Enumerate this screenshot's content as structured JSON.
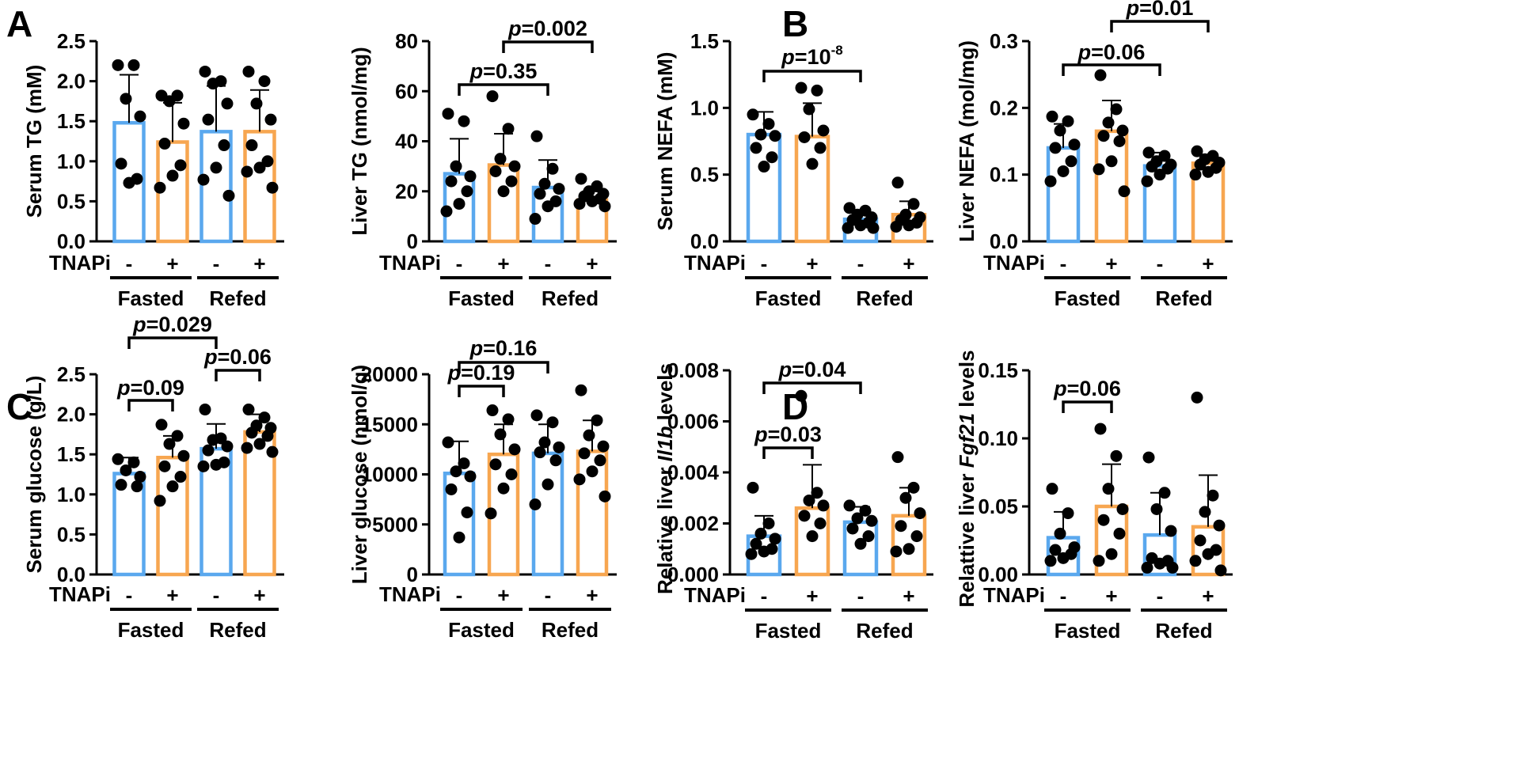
{
  "panel_letters": [
    "A",
    "B",
    "C",
    "D"
  ],
  "colors": {
    "control": "#5aa8ee",
    "treated": "#f7a650",
    "point": "#000000"
  },
  "treatment_label": "TNAPi",
  "treatment_signs": [
    "-",
    "+",
    "-",
    "+"
  ],
  "group_labels": [
    "Fasted",
    "Refed"
  ],
  "chart_data": [
    {
      "type": "bar",
      "ylabel": "Serum TG (mM)",
      "ylim": [
        0,
        2.5
      ],
      "yticks": [
        "0.0",
        "0.5",
        "1.0",
        "1.5",
        "2.0",
        "2.5"
      ],
      "categories": [
        "Fasted -",
        "Fasted +",
        "Refed -",
        "Refed +"
      ],
      "values": [
        1.48,
        1.24,
        1.37,
        1.37
      ],
      "errors": [
        0.6,
        0.49,
        0.57,
        0.52
      ],
      "points": [
        [
          2.2,
          2.2,
          1.78,
          1.56,
          0.97,
          0.78,
          0.73
        ],
        [
          1.82,
          1.82,
          1.75,
          1.47,
          1.22,
          0.95,
          0.82,
          0.67
        ],
        [
          2.12,
          2.0,
          1.97,
          1.72,
          1.52,
          1.2,
          0.92,
          0.77,
          0.57
        ],
        [
          2.12,
          2.0,
          1.72,
          1.52,
          1.2,
          1.0,
          0.92,
          0.87,
          0.67
        ]
      ],
      "comparisons": []
    },
    {
      "type": "bar",
      "ylabel": "Liver TG (nmol/mg)",
      "ylim": [
        0,
        80
      ],
      "yticks": [
        "0",
        "20",
        "40",
        "60",
        "80"
      ],
      "categories": [
        "Fasted -",
        "Fasted +",
        "Refed -",
        "Refed +"
      ],
      "values": [
        27,
        30.5,
        21.5,
        16.5
      ],
      "errors": [
        14,
        12.5,
        11,
        3.5
      ],
      "points": [
        [
          51,
          48,
          30,
          26,
          24,
          20,
          15,
          12
        ],
        [
          58,
          45,
          33,
          30,
          28,
          24,
          20
        ],
        [
          42,
          29,
          23,
          21,
          19,
          16,
          14,
          9
        ],
        [
          25,
          22,
          20,
          19,
          18,
          17,
          16,
          15,
          14
        ]
      ],
      "comparisons": [
        {
          "label": "p=0.35",
          "from": 0,
          "to": 2
        },
        {
          "label": "p=0.002",
          "from": 1,
          "to": 3
        }
      ]
    },
    {
      "type": "bar",
      "ylabel": "Serum NEFA (mM)",
      "ylim": [
        0,
        1.5
      ],
      "yticks": [
        "0.0",
        "0.5",
        "1.0",
        "1.5"
      ],
      "categories": [
        "Fasted -",
        "Fasted +",
        "Refed -",
        "Refed +"
      ],
      "values": [
        0.8,
        0.785,
        0.165,
        0.2
      ],
      "errors": [
        0.17,
        0.25,
        0.05,
        0.1
      ],
      "points": [
        [
          0.95,
          0.88,
          0.8,
          0.79,
          0.7,
          0.63,
          0.56
        ],
        [
          1.15,
          1.13,
          0.99,
          0.83,
          0.78,
          0.7,
          0.58
        ],
        [
          0.25,
          0.23,
          0.2,
          0.18,
          0.16,
          0.14,
          0.12,
          0.1,
          0.1
        ],
        [
          0.44,
          0.28,
          0.2,
          0.18,
          0.16,
          0.14,
          0.12,
          0.11
        ]
      ],
      "comparisons": [
        {
          "label": "p=10",
          "sup": "-8",
          "from": 0,
          "to": 2
        }
      ]
    },
    {
      "type": "bar",
      "ylabel": "Liver NEFA (mol/mg)",
      "ylim": [
        0,
        0.3
      ],
      "yticks": [
        "0.0",
        "0.1",
        "0.2",
        "0.3"
      ],
      "categories": [
        "Fasted -",
        "Fasted +",
        "Refed -",
        "Refed +"
      ],
      "values": [
        0.14,
        0.165,
        0.113,
        0.117
      ],
      "errors": [
        0.036,
        0.046,
        0.02,
        0.013
      ],
      "points": [
        [
          0.187,
          0.18,
          0.166,
          0.145,
          0.14,
          0.12,
          0.105,
          0.09
        ],
        [
          0.249,
          0.198,
          0.178,
          0.166,
          0.158,
          0.15,
          0.12,
          0.108,
          0.075
        ],
        [
          0.133,
          0.128,
          0.12,
          0.115,
          0.112,
          0.109,
          0.1,
          0.09
        ],
        [
          0.135,
          0.128,
          0.123,
          0.118,
          0.115,
          0.11,
          0.104,
          0.1
        ]
      ],
      "comparisons": [
        {
          "label": "p=0.06",
          "from": 0,
          "to": 2
        },
        {
          "label": "p=0.01",
          "from": 1,
          "to": 3
        }
      ]
    },
    {
      "type": "bar",
      "ylabel": "Serum glucose (g/L)",
      "ylim": [
        0,
        2.5
      ],
      "yticks": [
        "0.0",
        "0.5",
        "1.0",
        "1.5",
        "2.0",
        "2.5"
      ],
      "categories": [
        "Fasted -",
        "Fasted +",
        "Refed -",
        "Refed +"
      ],
      "values": [
        1.26,
        1.46,
        1.57,
        1.78
      ],
      "errors": [
        0.2,
        0.27,
        0.31,
        0.22
      ],
      "points": [
        [
          1.44,
          1.4,
          1.3,
          1.22,
          1.12,
          1.1
        ],
        [
          1.87,
          1.73,
          1.63,
          1.48,
          1.35,
          1.22,
          1.1,
          0.92
        ],
        [
          2.06,
          1.7,
          1.68,
          1.6,
          1.55,
          1.4,
          1.37,
          1.35
        ],
        [
          2.06,
          1.96,
          1.86,
          1.83,
          1.77,
          1.73,
          1.63,
          1.58,
          1.53
        ]
      ],
      "comparisons": [
        {
          "label": "p=0.029",
          "from": 0,
          "to": 2
        },
        {
          "label": "p=0.09",
          "from": 0,
          "to": 1
        },
        {
          "label": "p=0.06",
          "from": 2,
          "to": 3
        }
      ]
    },
    {
      "type": "bar",
      "ylabel": "Liver glucose (nmol/g)",
      "ylim": [
        0,
        20000
      ],
      "yticks": [
        "0",
        "5000",
        "10000",
        "15000",
        "20000"
      ],
      "categories": [
        "Fasted -",
        "Fasted +",
        "Refed -",
        "Refed +"
      ],
      "values": [
        10100,
        12000,
        12100,
        12300
      ],
      "errors": [
        3200,
        3000,
        2900,
        3100
      ],
      "points": [
        [
          13200,
          11100,
          10300,
          9800,
          8500,
          6200,
          3700
        ],
        [
          16400,
          15500,
          14000,
          12500,
          11000,
          10000,
          8600,
          6100
        ],
        [
          15900,
          15200,
          13200,
          12700,
          12200,
          11400,
          9000,
          7000
        ],
        [
          18400,
          15400,
          13900,
          12800,
          12100,
          11400,
          10300,
          9500,
          7800
        ]
      ],
      "comparisons": [
        {
          "label": "p=0.16",
          "from": 0,
          "to": 2
        },
        {
          "label": "p=0.19",
          "from": 0,
          "to": 1
        }
      ]
    },
    {
      "type": "bar",
      "ylabel": "Relative liver Il1b levels",
      "ylabel_parts": [
        "Relative liver ",
        "Il1b",
        " levels"
      ],
      "ylim": [
        0,
        0.008
      ],
      "yticks": [
        "0.000",
        "0.002",
        "0.004",
        "0.006",
        "0.008"
      ],
      "categories": [
        "Fasted -",
        "Fasted +",
        "Refed -",
        "Refed +"
      ],
      "values": [
        0.0015,
        0.0026,
        0.00205,
        0.0023
      ],
      "errors": [
        0.0008,
        0.0017,
        0.0006,
        0.0011
      ],
      "points": [
        [
          0.0034,
          0.002,
          0.0016,
          0.0014,
          0.0012,
          0.001,
          0.0009,
          0.0008
        ],
        [
          0.007,
          0.0032,
          0.0029,
          0.0027,
          0.0023,
          0.002,
          0.0015
        ],
        [
          0.0027,
          0.0025,
          0.0022,
          0.0021,
          0.0018,
          0.0015,
          0.0012
        ],
        [
          0.0046,
          0.0034,
          0.003,
          0.0024,
          0.0019,
          0.0015,
          0.001,
          0.0009
        ]
      ],
      "comparisons": [
        {
          "label": "p=0.04",
          "from": 0,
          "to": 2
        },
        {
          "label": "p=0.03",
          "from": 0,
          "to": 1
        }
      ]
    },
    {
      "type": "bar",
      "ylabel": "Relattive liver Fgf21 levels",
      "ylabel_parts": [
        "Relattive liver ",
        "Fgf21",
        " levels"
      ],
      "ylim": [
        0,
        0.15
      ],
      "yticks": [
        "0.00",
        "0.05",
        "0.10",
        "0.15"
      ],
      "categories": [
        "Fasted -",
        "Fasted +",
        "Refed -",
        "Refed +"
      ],
      "values": [
        0.027,
        0.05,
        0.029,
        0.035
      ],
      "errors": [
        0.019,
        0.031,
        0.031,
        0.038
      ],
      "points": [
        [
          0.063,
          0.045,
          0.03,
          0.02,
          0.018,
          0.015,
          0.012,
          0.01
        ],
        [
          0.107,
          0.087,
          0.063,
          0.048,
          0.04,
          0.03,
          0.015,
          0.01
        ],
        [
          0.086,
          0.06,
          0.048,
          0.032,
          0.012,
          0.01,
          0.008,
          0.005,
          0.005
        ],
        [
          0.13,
          0.058,
          0.046,
          0.036,
          0.025,
          0.018,
          0.015,
          0.01,
          0.003
        ]
      ],
      "comparisons": [
        {
          "label": "p=0.06",
          "from": 0,
          "to": 1
        }
      ]
    }
  ]
}
